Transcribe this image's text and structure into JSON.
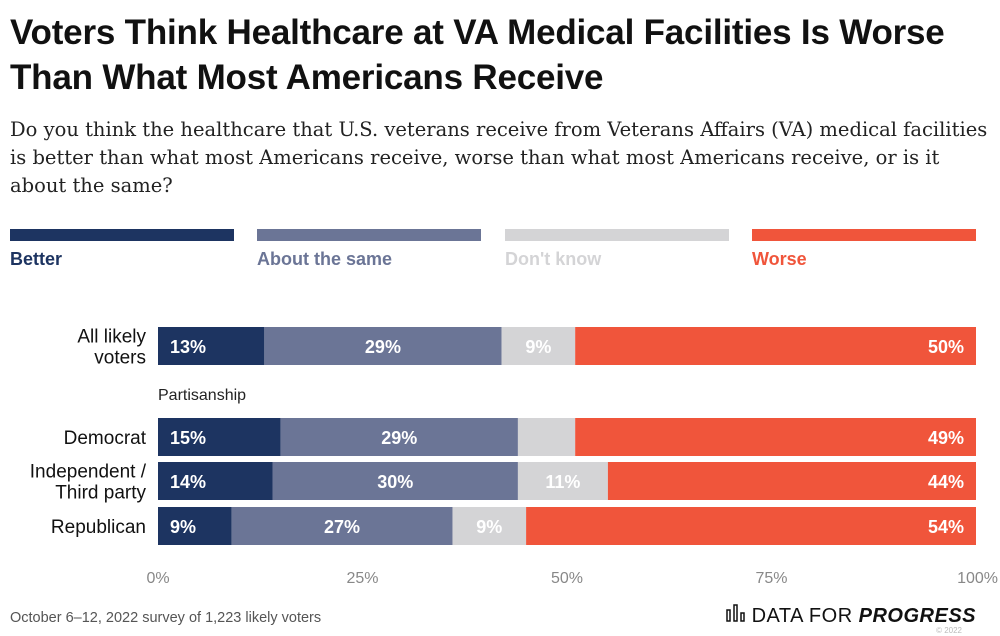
{
  "title": "Voters Think Healthcare at VA Medical Facilities Is Worse Than What Most Americans Receive",
  "subtitle": "Do you think the healthcare that U.S. veterans receive from Veterans Affairs (VA) medical facilities is better than what most Americans receive, worse than what most Americans receive, or is it about the same?",
  "legend": [
    {
      "label": "Better",
      "color": "#1d3461"
    },
    {
      "label": "About the same",
      "color": "#6b7596"
    },
    {
      "label": "Don't know",
      "color": "#d4d4d6"
    },
    {
      "label": "Worse",
      "color": "#f0553b"
    }
  ],
  "group_label": "Partisanship",
  "footer": {
    "note": "October 6–12, 2022 survey of 1,223 likely voters",
    "brand_a": "DATA FOR",
    "brand_b": "PROGRESS",
    "watermark": "© 2022"
  },
  "chart_data": {
    "type": "bar",
    "orientation": "horizontal",
    "stacked": true,
    "categories": [
      [
        "All likely",
        "voters"
      ],
      [
        "Democrat"
      ],
      [
        "Independent /",
        "Third party"
      ],
      [
        "Republican"
      ]
    ],
    "series": [
      {
        "name": "Better",
        "values": [
          13,
          15,
          14,
          9
        ],
        "labels": [
          "13%",
          "15%",
          "14%",
          "9%"
        ]
      },
      {
        "name": "About the same",
        "values": [
          29,
          29,
          30,
          27
        ],
        "labels": [
          "29%",
          "29%",
          "30%",
          "27%"
        ]
      },
      {
        "name": "Don't know",
        "values": [
          9,
          7,
          11,
          9
        ],
        "labels": [
          "9%",
          "",
          "11%",
          "9%"
        ]
      },
      {
        "name": "Worse",
        "values": [
          50,
          49,
          44,
          54
        ],
        "labels": [
          "50%",
          "49%",
          "44%",
          "54%"
        ]
      }
    ],
    "xlim": [
      0,
      100
    ],
    "xticks": [
      "0%",
      "25%",
      "50%",
      "75%",
      "100%"
    ],
    "colors": [
      "#1d3461",
      "#6b7596",
      "#d4d4d6",
      "#f0553b"
    ],
    "label_colors": [
      "#ffffff",
      "#ffffff",
      "#ffffff",
      "#ffffff"
    ]
  }
}
